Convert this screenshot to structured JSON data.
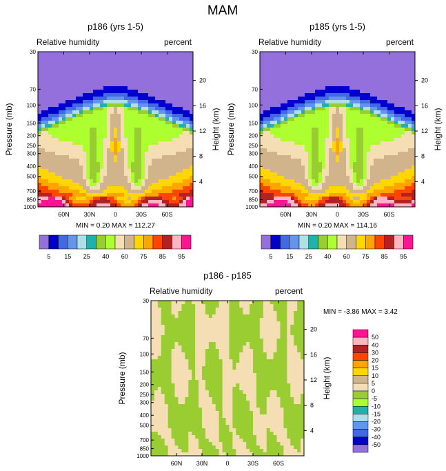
{
  "figure_title": "MAM",
  "chart_data": [
    {
      "type": "heatmap",
      "title": "p186 (yrs 1-5)",
      "left_label": "Relative humidity",
      "right_label": "percent",
      "xlabel": "",
      "ylabel": "Pressure (mb)",
      "y2label": "Height (km)",
      "x_ticks": [
        "60N",
        "30N",
        "0",
        "30S",
        "60S"
      ],
      "x_tick_values": [
        60,
        30,
        0,
        -30,
        -60
      ],
      "xlim": [
        90,
        -90
      ],
      "y_ticks": [
        "30",
        "70",
        "100",
        "150",
        "200",
        "250",
        "300",
        "400",
        "500",
        "700",
        "850",
        "1000"
      ],
      "y_tick_values": [
        30,
        70,
        100,
        150,
        200,
        250,
        300,
        400,
        500,
        700,
        850,
        1000
      ],
      "ylim": [
        1000,
        30
      ],
      "y2_ticks": [
        "20",
        "16",
        "12",
        "8",
        "4"
      ],
      "y2_tick_values": [
        20,
        16,
        12,
        8,
        4
      ],
      "stats": "MIN =  0.20  MAX = 112.27",
      "contour_levels": [
        5,
        10,
        15,
        20,
        25,
        30,
        40,
        50,
        60,
        70,
        75,
        80,
        85,
        90,
        95
      ],
      "colorbar_labels": [
        "5",
        "15",
        "25",
        "40",
        "60",
        "75",
        "85",
        "95"
      ]
    },
    {
      "type": "heatmap",
      "title": "p185 (yrs 1-5)",
      "left_label": "Relative humidity",
      "right_label": "percent",
      "xlabel": "",
      "ylabel": "Pressure (mb)",
      "y2label": "Height (km)",
      "x_ticks": [
        "60N",
        "30N",
        "0",
        "30S",
        "60S"
      ],
      "x_tick_values": [
        60,
        30,
        0,
        -30,
        -60
      ],
      "xlim": [
        90,
        -90
      ],
      "y_ticks": [
        "30",
        "70",
        "100",
        "150",
        "200",
        "250",
        "300",
        "400",
        "500",
        "700",
        "850",
        "1000"
      ],
      "y_tick_values": [
        30,
        70,
        100,
        150,
        200,
        250,
        300,
        400,
        500,
        700,
        850,
        1000
      ],
      "ylim": [
        1000,
        30
      ],
      "y2_ticks": [
        "20",
        "16",
        "12",
        "8",
        "4"
      ],
      "y2_tick_values": [
        20,
        16,
        12,
        8,
        4
      ],
      "stats": "MIN =  0.20  MAX = 114.16",
      "contour_levels": [
        5,
        10,
        15,
        20,
        25,
        30,
        40,
        50,
        60,
        70,
        75,
        80,
        85,
        90,
        95
      ],
      "colorbar_labels": [
        "5",
        "15",
        "25",
        "40",
        "60",
        "75",
        "85",
        "95"
      ]
    },
    {
      "type": "heatmap",
      "title": "p186 - p185",
      "left_label": "Relative humidity",
      "right_label": "percent",
      "xlabel": "",
      "ylabel": "Pressure (mb)",
      "y2label": "Height (km)",
      "x_ticks": [
        "60N",
        "30N",
        "0",
        "30S",
        "60S"
      ],
      "x_tick_values": [
        60,
        30,
        0,
        -30,
        -60
      ],
      "xlim": [
        90,
        -90
      ],
      "y_ticks": [
        "30",
        "70",
        "100",
        "150",
        "200",
        "250",
        "300",
        "400",
        "500",
        "700",
        "850",
        "1000"
      ],
      "y_tick_values": [
        30,
        70,
        100,
        150,
        200,
        250,
        300,
        400,
        500,
        700,
        850,
        1000
      ],
      "ylim": [
        1000,
        30
      ],
      "y2_ticks": [
        "20",
        "16",
        "12",
        "8",
        "4"
      ],
      "y2_tick_values": [
        20,
        16,
        12,
        8,
        4
      ],
      "stats": "MIN = -3.86  MAX =  3.42",
      "contour_levels": [
        50,
        40,
        30,
        20,
        15,
        10,
        5,
        0,
        -5,
        -10,
        -15,
        -20,
        -30,
        -40,
        -50
      ],
      "colorbar_labels": [
        "50",
        "40",
        "30",
        "20",
        "15",
        "10",
        "5",
        "0",
        "-5",
        "-10",
        "-15",
        "-20",
        "-30",
        "-40",
        "-50"
      ]
    }
  ],
  "colors": {
    "abs_scale": [
      "#9370db",
      "#0000cd",
      "#4169e1",
      "#6495ed",
      "#b0e0e6",
      "#20b2aa",
      "#9acd32",
      "#adff2f",
      "#f5deb3",
      "#d2b48c",
      "#ffd700",
      "#ffa500",
      "#ff4500",
      "#b22222",
      "#ffb6c1",
      "#ff1493"
    ],
    "diff_scale": [
      "#ff1493",
      "#ffb6c1",
      "#b22222",
      "#ff4500",
      "#ffa500",
      "#ffd700",
      "#d2b48c",
      "#f5deb3",
      "#9acd32",
      "#adff2f",
      "#20b2aa",
      "#b0e0e6",
      "#6495ed",
      "#4169e1",
      "#0000cd",
      "#9370db"
    ]
  }
}
